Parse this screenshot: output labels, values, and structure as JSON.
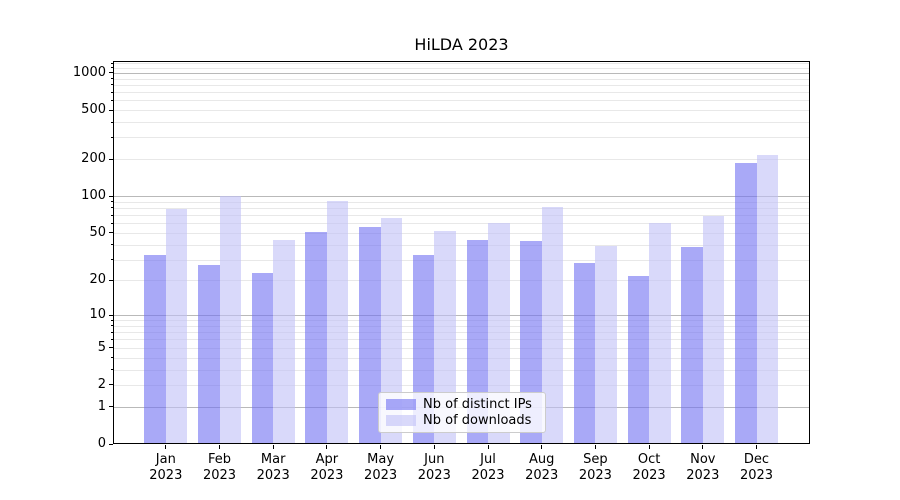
{
  "chart_data": {
    "type": "bar",
    "title": "HiLDA 2023",
    "categories": [
      "Jan",
      "Feb",
      "Mar",
      "Apr",
      "May",
      "Jun",
      "Jul",
      "Aug",
      "Sep",
      "Oct",
      "Nov",
      "Dec"
    ],
    "category_year": "2023",
    "series": [
      {
        "name": "Nb of distinct IPs",
        "color": "rgba(112,112,242,0.6)",
        "values": [
          33,
          27,
          23,
          51,
          56,
          33,
          44,
          43,
          28,
          22,
          38,
          185
        ]
      },
      {
        "name": "Nb of downloads",
        "color": "rgba(192,192,247,0.6)",
        "values": [
          78,
          100,
          44,
          92,
          66,
          52,
          60,
          82,
          39,
          60,
          69,
          215
        ]
      }
    ],
    "xlabel": "",
    "ylabel": "",
    "yscale": "log10(1+value)",
    "ylim": [
      0,
      1260
    ],
    "yticks": [
      0,
      1,
      2,
      5,
      10,
      20,
      50,
      100,
      200,
      500,
      1000
    ],
    "grid": {
      "major_values": [
        1,
        10,
        100,
        1000
      ],
      "minor_values": [
        2,
        3,
        4,
        5,
        6,
        7,
        8,
        9,
        20,
        30,
        40,
        50,
        60,
        70,
        80,
        90,
        200,
        300,
        400,
        500,
        600,
        700,
        800,
        900,
        1100,
        1200
      ],
      "major_color": "#b9b9b9",
      "minor_color": "#e8e8e8"
    },
    "legend_position": "lower center"
  },
  "colors": {
    "background": "#ffffff",
    "axis": "#000000",
    "text": "#000000"
  }
}
